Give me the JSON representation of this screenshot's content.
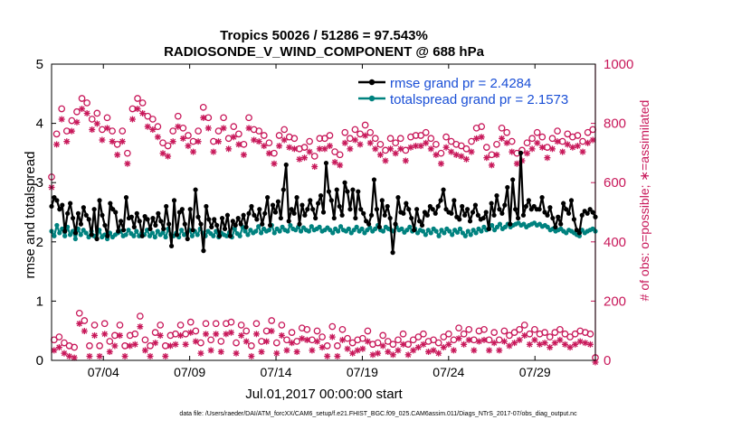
{
  "chart_data": {
    "type": "line",
    "title": "Tropics 50026 / 51286 = 97.543%",
    "subtitle": "RADIOSONDE_V_WIND_COMPONENT @ 688 hPa",
    "xlabel": "Jul.01,2017 00:00:00 start",
    "ylabel_left": "rmse and totalspread",
    "ylabel_right": "# of obs: o=possible; ∗=assimilated",
    "footer": "data file: /Users/raeder/DAI/ATM_forcXX/CAM6_setup/f.e21.FHIST_BGC.f09_025.CAM6assim.011/Diags_NTrS_2017-07/obs_diag_output.nc",
    "xlim": [
      1,
      32.5
    ],
    "ylim_left": [
      0,
      5
    ],
    "ylim_right": [
      0,
      1000
    ],
    "x_ticks": [
      4,
      9,
      14,
      19,
      24,
      29
    ],
    "x_tick_labels": [
      "07/04",
      "07/09",
      "07/14",
      "07/19",
      "07/24",
      "07/29"
    ],
    "y_ticks_left": [
      "0",
      "1",
      "2",
      "3",
      "4",
      "5"
    ],
    "y_ticks_right": [
      "0",
      "200",
      "400",
      "600",
      "800",
      "1000"
    ],
    "colors": {
      "rmse": "#000000",
      "spread": "#00827f",
      "obs": "#c8185a"
    },
    "legend": [
      "rmse grand pr = 2.4284",
      "totalspread grand pr = 2.1573"
    ],
    "series": [
      {
        "name": "rmse",
        "values": [
          2.6,
          2.75,
          2.7,
          2.55,
          2.62,
          2.18,
          2.48,
          2.65,
          2.4,
          2.15,
          2.48,
          2.3,
          2.58,
          2.45,
          2.38,
          2.12,
          2.55,
          2.05,
          2.7,
          2.45,
          2.28,
          2.1,
          2.65,
          2.55,
          2.5,
          2.18,
          2.35,
          2.2,
          2.75,
          2.4,
          2.42,
          2.25,
          2.48,
          2.35,
          2.1,
          2.43,
          2.38,
          2.22,
          2.4,
          2.28,
          2.48,
          2.35,
          2.22,
          2.6,
          2.3,
          1.93,
          2.7,
          2.12,
          2.5,
          2.55,
          2.3,
          2.05,
          2.55,
          2.2,
          2.88,
          2.42,
          2.3,
          1.85,
          2.6,
          2.38,
          2.25,
          2.38,
          2.28,
          2.1,
          2.4,
          2.22,
          2.45,
          2.1,
          2.35,
          2.28,
          2.4,
          2.3,
          2.45,
          2.25,
          2.48,
          2.6,
          2.45,
          2.38,
          2.55,
          2.3,
          2.48,
          2.75,
          2.28,
          2.62,
          2.5,
          2.68,
          2.4,
          2.88,
          3.3,
          2.35,
          2.55,
          2.48,
          2.75,
          2.3,
          2.62,
          2.45,
          2.55,
          2.7,
          2.55,
          2.4,
          2.65,
          2.78,
          2.5,
          3.33,
          2.85,
          2.7,
          2.4,
          2.88,
          2.6,
          2.45,
          3.0,
          2.85,
          2.55,
          2.88,
          2.4,
          2.85,
          2.55,
          2.48,
          2.35,
          2.3,
          2.45,
          3.05,
          2.55,
          2.25,
          2.7,
          2.45,
          2.6,
          2.4,
          1.82,
          2.3,
          2.75,
          2.5,
          2.48,
          2.65,
          2.55,
          2.4,
          2.2,
          2.55,
          2.35,
          2.28,
          2.5,
          2.45,
          2.6,
          2.55,
          2.48,
          2.6,
          2.7,
          2.88,
          2.55,
          2.5,
          2.48,
          2.7,
          2.42,
          2.38,
          2.6,
          2.45,
          2.55,
          2.35,
          2.5,
          2.62,
          2.45,
          2.38,
          2.4,
          2.5,
          2.22,
          2.65,
          2.45,
          2.78,
          2.55,
          2.48,
          2.62,
          2.92,
          2.3,
          3.05,
          2.55,
          2.4,
          3.5,
          2.45,
          2.6,
          2.7,
          2.55,
          2.6,
          2.55,
          2.55,
          2.75,
          2.5,
          2.45,
          2.58,
          2.4,
          2.25,
          2.42,
          2.3,
          2.65,
          2.55,
          2.48,
          2.7,
          2.38,
          2.2,
          2.15,
          2.45,
          2.52,
          2.48,
          2.55,
          2.5,
          2.42
        ]
      },
      {
        "name": "totalspread",
        "values": [
          2.18,
          2.1,
          2.28,
          2.15,
          2.22,
          2.1,
          2.25,
          2.12,
          2.18,
          2.05,
          2.22,
          2.12,
          2.2,
          2.15,
          2.08,
          2.18,
          2.1,
          2.06,
          2.2,
          2.08,
          2.12,
          2.05,
          2.15,
          2.08,
          2.12,
          2.15,
          2.18,
          2.1,
          2.12,
          2.2,
          2.14,
          2.1,
          2.18,
          2.1,
          2.15,
          2.12,
          2.2,
          2.1,
          2.15,
          2.08,
          2.18,
          2.12,
          2.16,
          2.08,
          2.22,
          2.12,
          2.1,
          2.15,
          2.08,
          2.2,
          2.12,
          2.15,
          2.2,
          2.1,
          2.18,
          2.12,
          2.22,
          2.15,
          2.1,
          2.18,
          2.14,
          2.1,
          2.18,
          2.08,
          2.15,
          2.12,
          2.1,
          2.16,
          2.08,
          2.22,
          2.14,
          2.1,
          2.25,
          2.18,
          2.12,
          2.2,
          2.15,
          2.18,
          2.26,
          2.15,
          2.22,
          2.18,
          2.2,
          2.28,
          2.15,
          2.22,
          2.18,
          2.25,
          2.2,
          2.18,
          2.28,
          2.22,
          2.2,
          2.25,
          2.18,
          2.24,
          2.2,
          2.18,
          2.26,
          2.2,
          2.22,
          2.25,
          2.18,
          2.2,
          2.24,
          2.2,
          2.15,
          2.22,
          2.18,
          2.26,
          2.2,
          2.18,
          2.22,
          2.15,
          2.2,
          2.25,
          2.18,
          2.22,
          2.15,
          2.2,
          2.24,
          2.18,
          2.22,
          2.28,
          2.2,
          2.18,
          2.25,
          2.22,
          2.2,
          2.18,
          2.25,
          2.2,
          2.22,
          2.16,
          2.2,
          2.25,
          2.18,
          2.22,
          2.15,
          2.2,
          2.18,
          2.12,
          2.2,
          2.15,
          2.22,
          2.18,
          2.1,
          2.2,
          2.15,
          2.22,
          2.18,
          2.12,
          2.2,
          2.16,
          2.22,
          2.15,
          2.1,
          2.18,
          2.12,
          2.2,
          2.15,
          2.22,
          2.18,
          2.25,
          2.2,
          2.22,
          2.28,
          2.2,
          2.25,
          2.3,
          2.22,
          2.25,
          2.3,
          2.25,
          2.28,
          2.3,
          2.32,
          2.28,
          2.3,
          2.25,
          2.28,
          2.3,
          2.32,
          2.28,
          2.3,
          2.26,
          2.28,
          2.25,
          2.2,
          2.22,
          2.18,
          2.2,
          2.22,
          2.18,
          2.15,
          2.2,
          2.18,
          2.15,
          2.12,
          2.1,
          2.2,
          2.15,
          2.18,
          2.2,
          2.22,
          2.18
        ]
      },
      {
        "name": "obs_possible",
        "values": [
          610,
          60,
          755,
          70,
          840,
          50,
          765,
          40,
          800,
          35,
          830,
          150,
          875,
          125,
          860,
          40,
          805,
          110,
          825,
          40,
          770,
          115,
          810,
          55,
          765,
          75,
          720,
          110,
          765,
          40,
          690,
          75,
          840,
          80,
          875,
          140,
          860,
          60,
          815,
          40,
          805,
          85,
          780,
          110,
          725,
          40,
          715,
          75,
          765,
          80,
          815,
          110,
          775,
          80,
          750,
          120,
          730,
          90,
          765,
          50,
          845,
          115,
          810,
          60,
          730,
          115,
          765,
          55,
          810,
          115,
          740,
          120,
          780,
          50,
          755,
          110,
          720,
          90,
          810,
          40,
          770,
          115,
          765,
          55,
          750,
          90,
          725,
          125,
          690,
          50,
          750,
          110,
          770,
          60,
          745,
          85,
          740,
          55,
          705,
          100,
          710,
          95,
          730,
          60,
          680,
          90,
          740,
          70,
          740,
          40,
          750,
          105,
          695,
          40,
          685,
          95,
          760,
          65,
          740,
          50,
          770,
          60,
          755,
          65,
          785,
          90,
          760,
          45,
          740,
          50,
          720,
          75,
          700,
          55,
          740,
          45,
          725,
          60,
          740,
          80,
          700,
          45,
          745,
          60,
          750,
          70,
          750,
          80,
          760,
          55,
          740,
          60,
          720,
          50,
          690,
          70,
          745,
          80,
          730,
          60,
          720,
          100,
          715,
          80,
          705,
          95,
          730,
          60,
          775,
          90,
          780,
          95,
          710,
          60,
          685,
          85,
          720,
          60,
          775,
          90,
          760,
          75,
          730,
          85,
          690,
          95,
          700,
          110,
          725,
          80,
          740,
          95,
          760,
          80,
          745,
          85,
          710,
          70,
          740,
          85,
          765,
          95,
          730,
          80,
          755,
          70,
          745,
          80,
          750,
          90,
          730,
          85,
          760,
          80,
          770,
          0
        ]
      }
    ]
  }
}
